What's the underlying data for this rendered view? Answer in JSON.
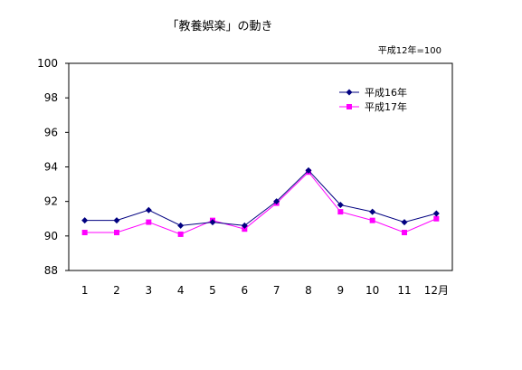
{
  "chart_data": {
    "type": "line",
    "title": "「教養娯楽」の動き",
    "note": "平成12年=100",
    "xlabel": "",
    "ylabel": "",
    "categories": [
      "1",
      "2",
      "3",
      "4",
      "5",
      "6",
      "7",
      "8",
      "9",
      "10",
      "11",
      "12月"
    ],
    "ylim": [
      88,
      100
    ],
    "yticks": [
      "88",
      "90",
      "92",
      "94",
      "96",
      "98",
      "100"
    ],
    "grid": false,
    "legend_position": "top-right",
    "series": [
      {
        "name": "平成16年",
        "color": "#000080",
        "marker": "diamond",
        "values": [
          90.9,
          90.9,
          91.5,
          90.6,
          90.8,
          90.6,
          92.0,
          93.8,
          91.8,
          91.4,
          90.8,
          91.3
        ]
      },
      {
        "name": "平成17年",
        "color": "#ff00ff",
        "marker": "square",
        "values": [
          90.2,
          90.2,
          90.8,
          90.1,
          90.9,
          90.4,
          91.9,
          93.7,
          91.4,
          90.9,
          90.2,
          91.0
        ]
      }
    ]
  }
}
